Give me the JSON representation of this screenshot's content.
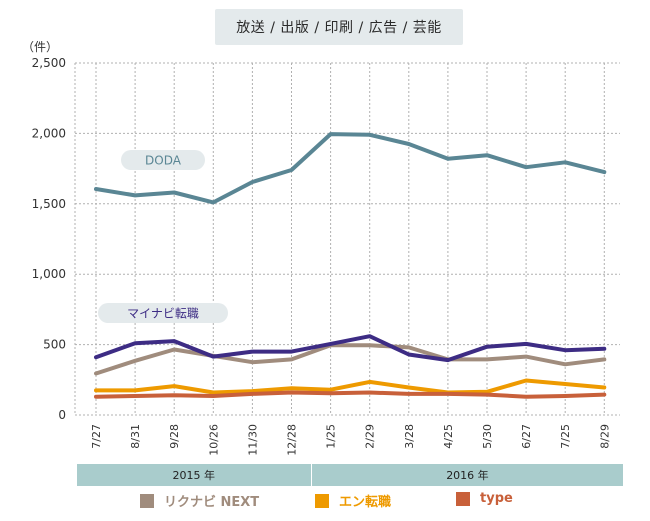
{
  "chart_data": {
    "type": "line",
    "title": "放送 / 出版 / 印刷 / 広告 / 芸能",
    "ylabel": "（件）",
    "ylim": [
      0,
      2500
    ],
    "yticks": [
      {
        "value": 0,
        "label": "0"
      },
      {
        "value": 500,
        "label": "500"
      },
      {
        "value": 1000,
        "label": "1,000"
      },
      {
        "value": 1500,
        "label": "1,500"
      },
      {
        "value": 2000,
        "label": "2,000"
      },
      {
        "value": 2500,
        "label": "2,500"
      }
    ],
    "categories": [
      "7/27",
      "8/31",
      "9/28",
      "10/26",
      "11/30",
      "12/28",
      "1/25",
      "2/29",
      "3/28",
      "4/25",
      "5/30",
      "6/27",
      "7/25",
      "8/29"
    ],
    "years": [
      {
        "label": "2015 年",
        "from": 0,
        "to": 5
      },
      {
        "label": "2016 年",
        "from": 6,
        "to": 13
      }
    ],
    "series": [
      {
        "name": "リクナビ NEXT",
        "color": "#a08c7d",
        "values": [
          295,
          385,
          465,
          420,
          375,
          395,
          495,
          495,
          480,
          395,
          395,
          415,
          360,
          395
        ]
      },
      {
        "name": "エン転職",
        "color": "#ee9a00",
        "values": [
          175,
          175,
          205,
          160,
          170,
          190,
          180,
          235,
          195,
          160,
          165,
          245,
          220,
          195
        ]
      },
      {
        "name": "type",
        "color": "#c8603a",
        "values": [
          130,
          135,
          140,
          135,
          150,
          160,
          155,
          160,
          150,
          150,
          145,
          130,
          135,
          145
        ]
      },
      {
        "name": "DODA",
        "color": "#5a8694",
        "inline_label": "DODA",
        "values": [
          1605,
          1560,
          1580,
          1510,
          1655,
          1740,
          1995,
          1990,
          1925,
          1820,
          1845,
          1760,
          1795,
          1725
        ]
      },
      {
        "name": "マイナビ転職",
        "color": "#3d2c84",
        "inline_label": "マイナビ転職",
        "values": [
          410,
          510,
          525,
          415,
          450,
          450,
          505,
          560,
          430,
          390,
          485,
          505,
          460,
          470
        ]
      }
    ],
    "legend": [
      "リクナビ NEXT",
      "エン転職",
      "type"
    ]
  }
}
